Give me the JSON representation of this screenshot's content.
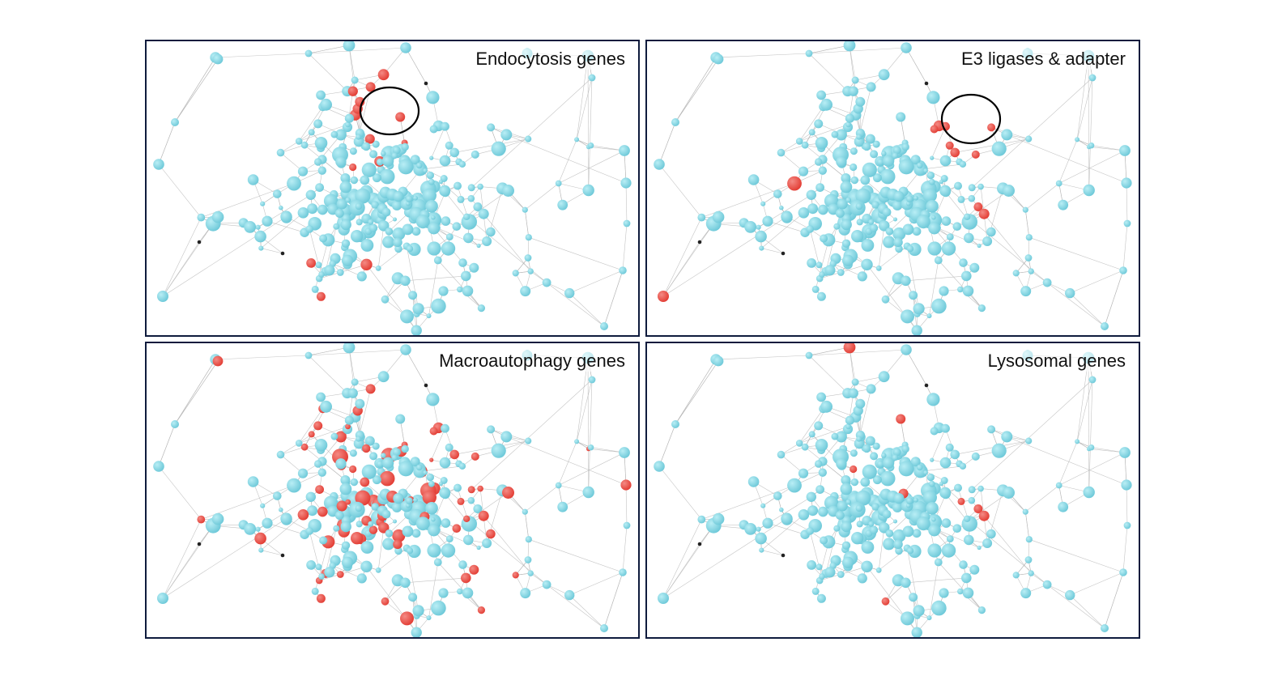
{
  "panels": [
    {
      "title": "Endocytosis genes",
      "highlight_group": "endocytosis",
      "circle": true,
      "circle_at": "cluster-top-center"
    },
    {
      "title": "E3 ligases & adapter",
      "highlight_group": "e3",
      "circle": true,
      "circle_at": "cluster-top-right"
    },
    {
      "title": "Macroautophagy genes",
      "highlight_group": "macro",
      "circle": false
    },
    {
      "title": "Lysosomal genes",
      "highlight_group": "lyso",
      "circle": false
    }
  ],
  "colors": {
    "node_default": "#6cc8d8",
    "node_highlight": "#e23b32",
    "node_special": "#222222",
    "edge": "#b5b5b5",
    "circle": "#000000",
    "border": "#0f1b3d"
  }
}
